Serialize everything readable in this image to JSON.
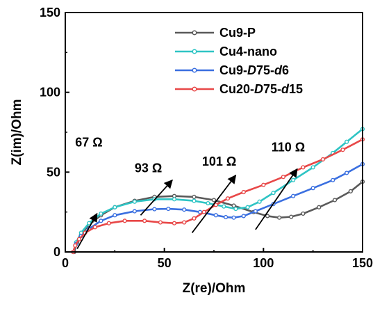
{
  "chart_data": {
    "type": "line",
    "xlabel": "Z(re)/Ohm",
    "ylabel": "Z(im)/Ohm",
    "xlim": [
      0,
      150
    ],
    "ylim": [
      0,
      150
    ],
    "xticks": [
      0,
      50,
      100,
      150
    ],
    "yticks": [
      0,
      50,
      100,
      150
    ],
    "grid": false,
    "legend_position": "top-right",
    "series": [
      {
        "name": "Cu9-P",
        "color": "#5a5a5a",
        "points": [
          [
            4.5,
            0
          ],
          [
            6,
            6
          ],
          [
            8,
            11
          ],
          [
            12,
            17
          ],
          [
            18,
            23
          ],
          [
            25,
            28
          ],
          [
            35,
            32
          ],
          [
            45,
            34.5
          ],
          [
            55,
            35
          ],
          [
            65,
            34.5
          ],
          [
            75,
            32.5
          ],
          [
            85,
            29
          ],
          [
            95,
            25
          ],
          [
            102,
            22.5
          ],
          [
            108,
            21.5
          ],
          [
            114,
            22
          ],
          [
            120,
            24
          ],
          [
            128,
            28
          ],
          [
            136,
            32.5
          ],
          [
            144,
            38
          ],
          [
            150,
            44
          ]
        ]
      },
      {
        "name": "Cu4-nano",
        "color": "#2ec4c4",
        "points": [
          [
            4,
            0
          ],
          [
            5.5,
            6
          ],
          [
            8,
            12
          ],
          [
            12,
            18
          ],
          [
            18,
            24
          ],
          [
            25,
            28
          ],
          [
            35,
            31.5
          ],
          [
            45,
            33
          ],
          [
            55,
            33
          ],
          [
            65,
            32
          ],
          [
            72,
            30.5
          ],
          [
            80,
            28.5
          ],
          [
            86,
            27
          ],
          [
            92,
            28
          ],
          [
            98,
            31.5
          ],
          [
            105,
            37
          ],
          [
            115,
            45
          ],
          [
            125,
            53
          ],
          [
            135,
            62
          ],
          [
            142,
            69
          ],
          [
            150,
            77
          ]
        ]
      },
      {
        "name": "Cu9-D75-d6",
        "color": "#3a6fe0",
        "points": [
          [
            4,
            0
          ],
          [
            5.5,
            5
          ],
          [
            8,
            10
          ],
          [
            12,
            14.5
          ],
          [
            18,
            19.5
          ],
          [
            25,
            23
          ],
          [
            35,
            25.5
          ],
          [
            45,
            26.8
          ],
          [
            52,
            27
          ],
          [
            60,
            26.5
          ],
          [
            68,
            25
          ],
          [
            76,
            23
          ],
          [
            81,
            21.8
          ],
          [
            85,
            21.5
          ],
          [
            90,
            22.5
          ],
          [
            96,
            25.5
          ],
          [
            105,
            30
          ],
          [
            115,
            35
          ],
          [
            125,
            40
          ],
          [
            135,
            45
          ],
          [
            142,
            49.5
          ],
          [
            150,
            55
          ]
        ]
      },
      {
        "name": "Cu20-D75-d15",
        "color": "#e84848",
        "points": [
          [
            4,
            0
          ],
          [
            5,
            4
          ],
          [
            7,
            8
          ],
          [
            10,
            12
          ],
          [
            15,
            15.5
          ],
          [
            22,
            18
          ],
          [
            30,
            19.5
          ],
          [
            40,
            19.5
          ],
          [
            48,
            18.5
          ],
          [
            55,
            18
          ],
          [
            60,
            18.5
          ],
          [
            65,
            21
          ],
          [
            70,
            25
          ],
          [
            76,
            29.5
          ],
          [
            82,
            33.5
          ],
          [
            90,
            37.5
          ],
          [
            100,
            42
          ],
          [
            110,
            47
          ],
          [
            120,
            53
          ],
          [
            130,
            58
          ],
          [
            140,
            64
          ],
          [
            150,
            70.5
          ]
        ]
      }
    ],
    "annotations": [
      {
        "text": "67 Ω",
        "label_at": [
          5,
          66
        ],
        "arrow_from": [
          6,
          2
        ],
        "arrow_to": [
          16,
          24
        ]
      },
      {
        "text": "93 Ω",
        "label_at": [
          35,
          50
        ],
        "arrow_from": [
          38,
          23
        ],
        "arrow_to": [
          54,
          45
        ]
      },
      {
        "text": "101 Ω",
        "label_at": [
          69,
          54
        ],
        "arrow_from": [
          64,
          12
        ],
        "arrow_to": [
          86,
          48
        ]
      },
      {
        "text": "110 Ω",
        "label_at": [
          104,
          63
        ],
        "arrow_from": [
          96,
          14
        ],
        "arrow_to": [
          117,
          52
        ]
      }
    ]
  }
}
